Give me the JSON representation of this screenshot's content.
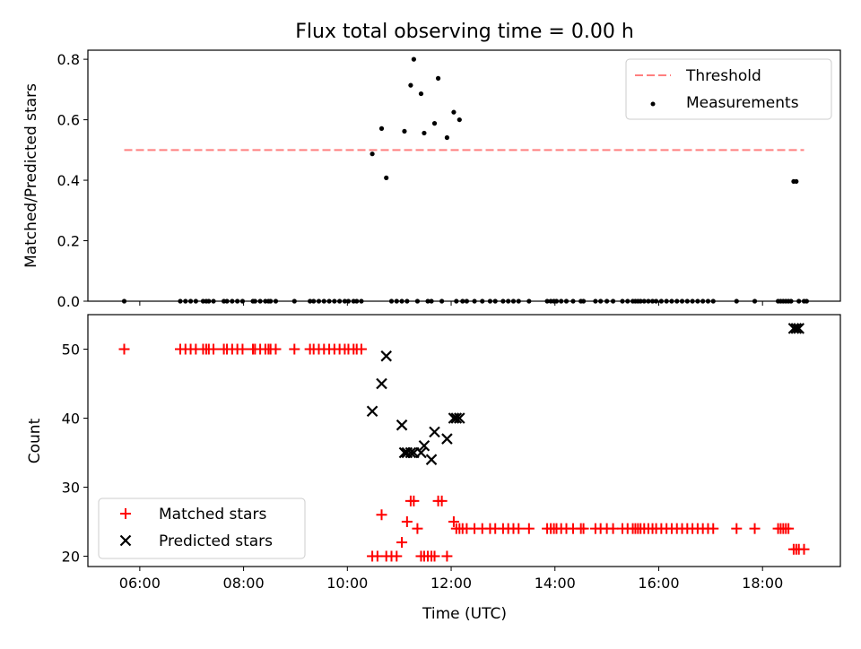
{
  "figure": {
    "title": "Flux total observing time = 0.00 h",
    "xlabel": "Time (UTC)",
    "xticks": [
      6,
      8,
      10,
      12,
      14,
      16,
      18
    ],
    "xtick_labels": [
      "06:00",
      "08:00",
      "10:00",
      "12:00",
      "14:00",
      "16:00",
      "18:00"
    ],
    "xlim": [
      5.0,
      19.5
    ],
    "colors": {
      "threshold": "#ff7f7f",
      "measurements": "#000000",
      "matched": "#ff0000",
      "predicted": "#000000"
    }
  },
  "chart_data": [
    {
      "type": "scatter",
      "ylabel": "Matched/Predicted stars",
      "ylim": [
        0.0,
        0.83
      ],
      "yticks": [
        0.0,
        0.2,
        0.4,
        0.6,
        0.8
      ],
      "ytick_labels": [
        "0.0",
        "0.2",
        "0.4",
        "0.6",
        "0.8"
      ],
      "legend": {
        "position": "top-right",
        "threshold_label": "Threshold",
        "measurements_label": "Measurements"
      },
      "threshold": {
        "x": [
          5.7,
          18.8
        ],
        "y": 0.5
      },
      "measurements": {
        "x": [
          5.7,
          6.78,
          6.88,
          6.98,
          7.08,
          7.22,
          7.28,
          7.33,
          7.42,
          7.62,
          7.68,
          7.78,
          7.88,
          7.98,
          8.18,
          8.22,
          8.32,
          8.42,
          8.48,
          8.52,
          8.62,
          8.98,
          9.28,
          9.35,
          9.45,
          9.55,
          9.65,
          9.75,
          9.85,
          9.95,
          10.02,
          10.12,
          10.18,
          10.27,
          10.48,
          10.66,
          10.75,
          10.85,
          10.95,
          11.05,
          11.1,
          11.15,
          11.22,
          11.28,
          11.35,
          11.42,
          11.48,
          11.55,
          11.62,
          11.68,
          11.75,
          11.82,
          11.92,
          12.05,
          12.1,
          12.16,
          12.22,
          12.3,
          12.45,
          12.6,
          12.75,
          12.85,
          13.0,
          13.1,
          13.2,
          13.3,
          13.5,
          13.85,
          13.92,
          13.98,
          14.03,
          14.12,
          14.22,
          14.35,
          14.5,
          14.55,
          14.78,
          14.88,
          15.0,
          15.12,
          15.3,
          15.4,
          15.5,
          15.55,
          15.6,
          15.65,
          15.72,
          15.8,
          15.88,
          15.95,
          16.05,
          16.15,
          16.25,
          16.35,
          16.45,
          16.55,
          16.65,
          16.75,
          16.85,
          16.95,
          17.05,
          17.5,
          17.85,
          18.3,
          18.35,
          18.4,
          18.45,
          18.5,
          18.55,
          18.6,
          18.65,
          18.7,
          18.8,
          18.85
        ],
        "y": [
          0.0,
          0.0,
          0.0,
          0.0,
          0.0,
          0.0,
          0.0,
          0.0,
          0.0,
          0.0,
          0.0,
          0.0,
          0.0,
          0.0,
          0.0,
          0.0,
          0.0,
          0.0,
          0.0,
          0.0,
          0.0,
          0.0,
          0.0,
          0.0,
          0.0,
          0.0,
          0.0,
          0.0,
          0.0,
          0.0,
          0.0,
          0.0,
          0.0,
          0.0,
          0.487,
          0.571,
          0.408,
          0.0,
          0.0,
          0.0,
          0.562,
          0.0,
          0.714,
          0.8,
          0.0,
          0.686,
          0.556,
          0.0,
          0.0,
          0.588,
          0.737,
          0.0,
          0.541,
          0.625,
          0.0,
          0.6,
          0.0,
          0.0,
          0.0,
          0.0,
          0.0,
          0.0,
          0.0,
          0.0,
          0.0,
          0.0,
          0.0,
          0.0,
          0.0,
          0.0,
          0.0,
          0.0,
          0.0,
          0.0,
          0.0,
          0.0,
          0.0,
          0.0,
          0.0,
          0.0,
          0.0,
          0.0,
          0.0,
          0.0,
          0.0,
          0.0,
          0.0,
          0.0,
          0.0,
          0.0,
          0.0,
          0.0,
          0.0,
          0.0,
          0.0,
          0.0,
          0.0,
          0.0,
          0.0,
          0.0,
          0.0,
          0.0,
          0.0,
          0.0,
          0.0,
          0.0,
          0.0,
          0.0,
          0.0,
          0.396,
          0.396,
          0.0,
          0.0,
          0.0
        ]
      }
    },
    {
      "type": "scatter",
      "ylabel": "Count",
      "ylim": [
        18.5,
        55.0
      ],
      "yticks": [
        20,
        30,
        40,
        50
      ],
      "ytick_labels": [
        "20",
        "30",
        "40",
        "50"
      ],
      "legend": {
        "position": "bottom-left"
      },
      "series": [
        {
          "name": "Matched stars",
          "marker": "plus",
          "x": [
            5.7,
            6.78,
            6.88,
            6.98,
            7.08,
            7.22,
            7.28,
            7.33,
            7.42,
            7.62,
            7.68,
            7.78,
            7.88,
            7.98,
            8.18,
            8.22,
            8.32,
            8.42,
            8.48,
            8.52,
            8.62,
            8.98,
            9.28,
            9.35,
            9.45,
            9.55,
            9.65,
            9.75,
            9.85,
            9.95,
            10.02,
            10.12,
            10.18,
            10.27,
            10.48,
            10.58,
            10.66,
            10.75,
            10.85,
            10.95,
            11.05,
            11.15,
            11.22,
            11.28,
            11.35,
            11.42,
            11.48,
            11.55,
            11.62,
            11.68,
            11.75,
            11.82,
            11.92,
            12.05,
            12.1,
            12.16,
            12.22,
            12.3,
            12.45,
            12.6,
            12.75,
            12.85,
            13.0,
            13.1,
            13.2,
            13.3,
            13.5,
            13.85,
            13.92,
            13.98,
            14.03,
            14.12,
            14.22,
            14.35,
            14.5,
            14.55,
            14.78,
            14.88,
            15.0,
            15.12,
            15.3,
            15.4,
            15.5,
            15.55,
            15.6,
            15.65,
            15.72,
            15.8,
            15.88,
            15.95,
            16.05,
            16.15,
            16.25,
            16.35,
            16.45,
            16.55,
            16.65,
            16.75,
            16.85,
            16.95,
            17.05,
            17.5,
            17.85,
            18.3,
            18.35,
            18.4,
            18.45,
            18.5,
            18.6,
            18.65,
            18.7,
            18.8
          ],
          "y": [
            50,
            50,
            50,
            50,
            50,
            50,
            50,
            50,
            50,
            50,
            50,
            50,
            50,
            50,
            50,
            50,
            50,
            50,
            50,
            50,
            50,
            50,
            50,
            50,
            50,
            50,
            50,
            50,
            50,
            50,
            50,
            50,
            50,
            50,
            20,
            20,
            26,
            20,
            20,
            20,
            22,
            25,
            28,
            28,
            24,
            20,
            20,
            20,
            20,
            20,
            28,
            28,
            20,
            25,
            24,
            24,
            24,
            24,
            24,
            24,
            24,
            24,
            24,
            24,
            24,
            24,
            24,
            24,
            24,
            24,
            24,
            24,
            24,
            24,
            24,
            24,
            24,
            24,
            24,
            24,
            24,
            24,
            24,
            24,
            24,
            24,
            24,
            24,
            24,
            24,
            24,
            24,
            24,
            24,
            24,
            24,
            24,
            24,
            24,
            24,
            24,
            24,
            24,
            24,
            24,
            24,
            24,
            24,
            21,
            21,
            21,
            21
          ]
        },
        {
          "name": "Predicted stars",
          "marker": "x",
          "x": [
            10.48,
            10.66,
            10.75,
            11.05,
            11.1,
            11.15,
            11.22,
            11.28,
            11.42,
            11.48,
            11.62,
            11.68,
            11.92,
            12.05,
            12.1,
            12.16,
            18.6,
            18.65,
            18.7
          ],
          "y": [
            41,
            45,
            49,
            39,
            35,
            35,
            35,
            35,
            35,
            36,
            34,
            38,
            37,
            40,
            40,
            40,
            53,
            53,
            53
          ]
        }
      ]
    }
  ]
}
